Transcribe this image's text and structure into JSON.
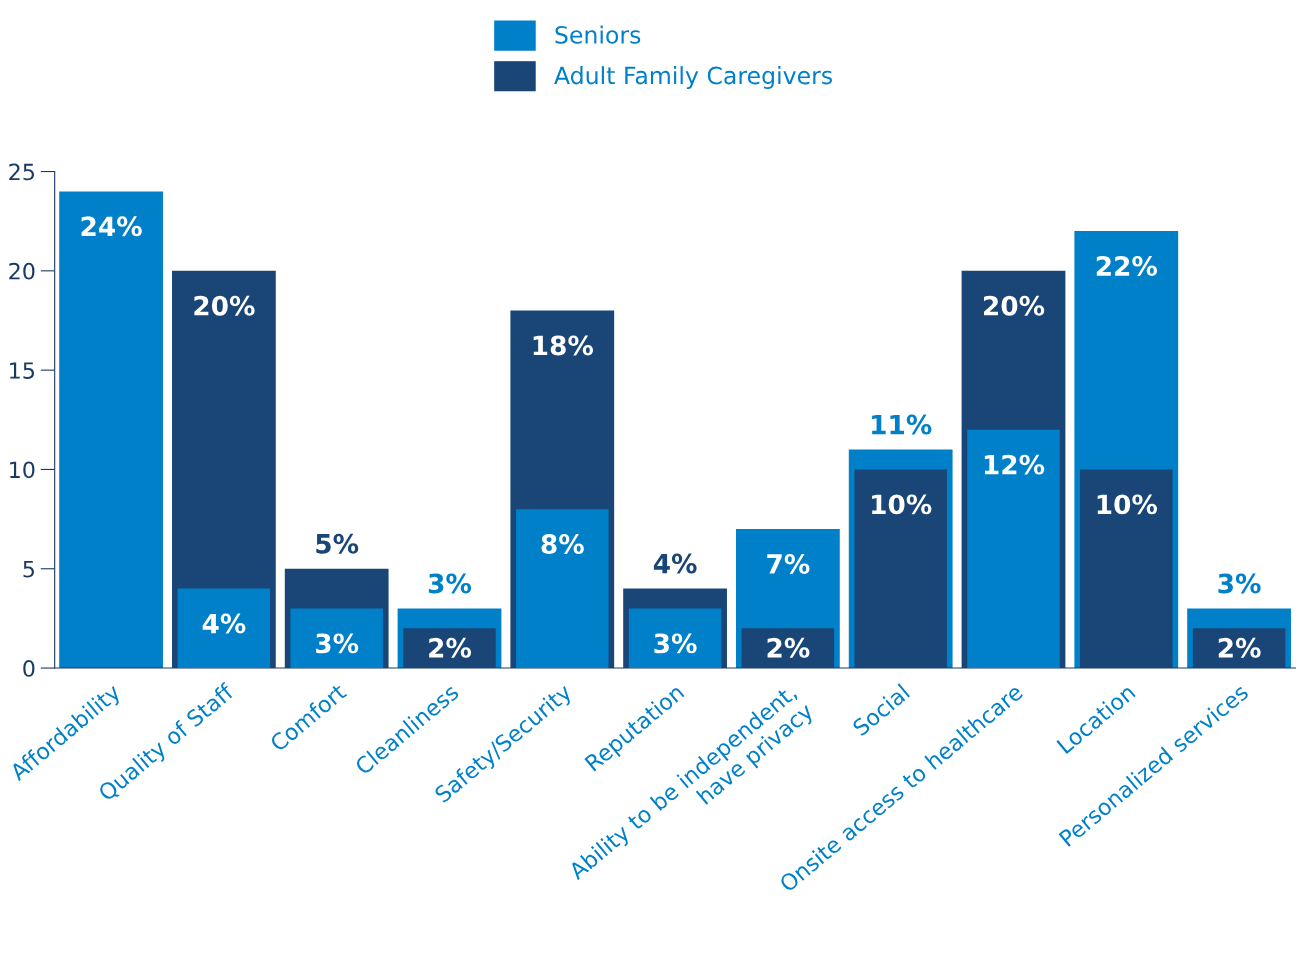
{
  "chart_data": {
    "type": "bar",
    "categories": [
      "Affordability",
      "Quality of Staff",
      "Comfort",
      "Cleanliness",
      "Safety/Security",
      "Reputation",
      "Ability to be independent,\nhave privacy",
      "Social",
      "Onsite access to healthcare",
      "Location",
      "Personalized services"
    ],
    "series": [
      {
        "name": "Seniors",
        "color": "#0080c9",
        "values": [
          24,
          4,
          3,
          3,
          8,
          3,
          7,
          11,
          12,
          22,
          3
        ],
        "value_labels": [
          "24%",
          "4%",
          "3%",
          "3%",
          "8%",
          "3%",
          "7%",
          "11%",
          "12%",
          "22%",
          "3%"
        ]
      },
      {
        "name": "Adult Family Caregivers",
        "color": "#1a4677",
        "values": [
          null,
          20,
          5,
          2,
          18,
          4,
          2,
          10,
          20,
          10,
          2
        ],
        "value_labels": [
          null,
          "20%",
          "5%",
          "2%",
          "18%",
          "4%",
          "2%",
          "10%",
          "20%",
          "10%",
          "2%"
        ]
      }
    ],
    "ylim": [
      0,
      25
    ],
    "yticks": [
      0,
      5,
      10,
      15,
      20,
      25
    ],
    "grid": false,
    "legend": "top"
  }
}
